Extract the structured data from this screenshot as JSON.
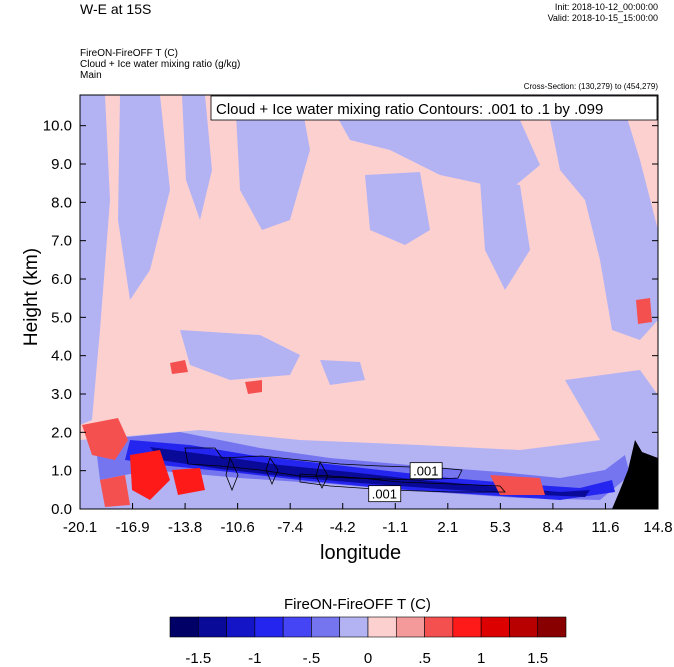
{
  "header": {
    "title": "W-E at 15S",
    "init": "Init: 2018-10-12_00:00:00",
    "valid": "Valid: 2018-10-15_15:00:00",
    "var_line1": "FireON-FireOFF T   (C)",
    "var_line2": "Cloud + Ice water mixing ratio   (g/kg)",
    "var_line3": "Main",
    "cross_section": "Cross-Section: (130,279) to (454,279)"
  },
  "chart_data": {
    "type": "heatmap",
    "contour_label": "Cloud + Ice water mixing ratio Contours: .001 to .1 by .099",
    "ylabel": "Height (km)",
    "xlabel": "longitude",
    "xlim": [
      -20.1,
      14.8
    ],
    "ylim": [
      0,
      10.8
    ],
    "x_ticks": [
      "-20.1",
      "-16.9",
      "-13.8",
      "-10.6",
      "-7.4",
      "-4.2",
      "-1.1",
      "2.1",
      "5.3",
      "8.4",
      "11.6",
      "14.8"
    ],
    "y_ticks": [
      "0.0",
      "1.0",
      "2.0",
      "3.0",
      "4.0",
      "5.0",
      "6.0",
      "7.0",
      "8.0",
      "9.0",
      "10.0"
    ],
    "y_tick_values": [
      0,
      1,
      2,
      3,
      4,
      5,
      6,
      7,
      8,
      9,
      10
    ],
    "contour_labels": [
      {
        "text": ".001",
        "x": 0.8,
        "z": 1.0
      },
      {
        "text": ".001",
        "x": -1.7,
        "z": 0.4
      }
    ],
    "colorbar": {
      "title": "FireON-FireOFF T  (C)",
      "tick_labels": [
        "-1.5",
        "-1",
        "-.5",
        "0",
        ".5",
        "1",
        "1.5"
      ],
      "colors": [
        "#000066",
        "#0a0a99",
        "#1515c8",
        "#2525f0",
        "#4545f5",
        "#7575f0",
        "#b3b3f3",
        "#fdd0d0",
        "#f59a9a",
        "#f55050",
        "#ff1a1a",
        "#dd0000",
        "#b80000",
        "#880000"
      ]
    },
    "colors": {
      "background_pos": "#fdd0d0",
      "background_neg": "#b3b3f3",
      "terrain": "#000000"
    }
  }
}
